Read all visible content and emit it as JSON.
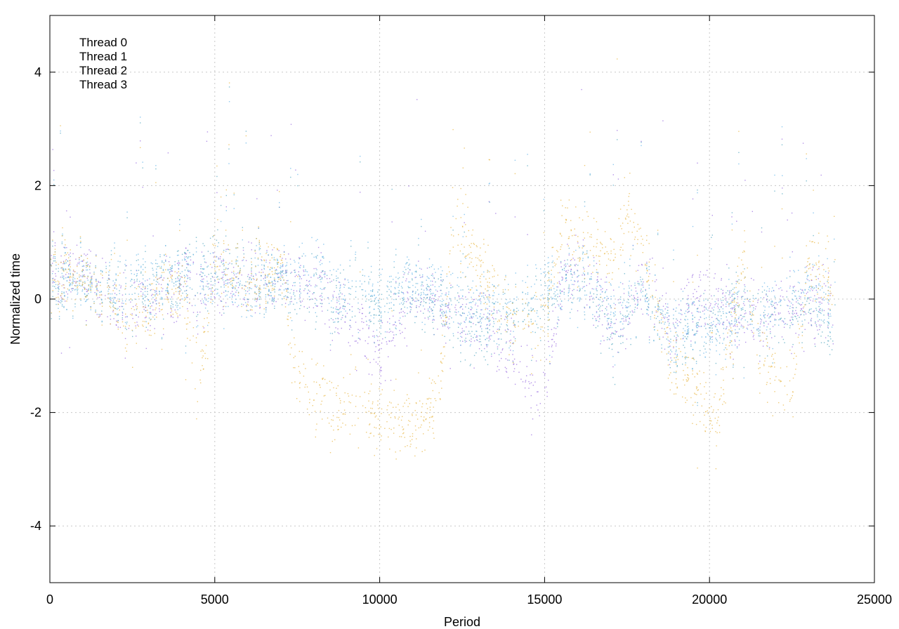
{
  "chart_data": {
    "type": "scatter",
    "title": "",
    "xlabel": "Period",
    "ylabel": "Normalized time",
    "xlim": [
      0,
      25000
    ],
    "ylim": [
      -5,
      5
    ],
    "xticks": [
      0,
      5000,
      10000,
      15000,
      20000,
      25000
    ],
    "yticks": [
      -4,
      -2,
      0,
      2,
      4
    ],
    "grid": true,
    "legend_position": "top-left",
    "x_extent": [
      0,
      23800
    ],
    "series": [
      {
        "name": "Thread 0",
        "color": "#9b6fe0",
        "centers": [
          [
            0,
            0.6
          ],
          [
            500,
            0.4
          ],
          [
            1000,
            0.5
          ],
          [
            1500,
            0.2
          ],
          [
            2000,
            0.0
          ],
          [
            2500,
            -0.1
          ],
          [
            3000,
            -0.2
          ],
          [
            3500,
            0.1
          ],
          [
            4000,
            0.3
          ],
          [
            4500,
            0.2
          ],
          [
            5000,
            0.3
          ],
          [
            6000,
            0.4
          ],
          [
            7000,
            0.3
          ],
          [
            8000,
            0.2
          ],
          [
            9000,
            -0.2
          ],
          [
            9500,
            -0.6
          ],
          [
            10000,
            -1.0
          ],
          [
            11000,
            0.2
          ],
          [
            12000,
            -0.2
          ],
          [
            13000,
            -0.3
          ],
          [
            13500,
            -0.6
          ],
          [
            14000,
            -1.0
          ],
          [
            14500,
            -1.4
          ],
          [
            15000,
            -1.6
          ],
          [
            15500,
            0.3
          ],
          [
            16000,
            0.6
          ],
          [
            17000,
            -0.4
          ],
          [
            18000,
            0.2
          ],
          [
            19000,
            -0.5
          ],
          [
            19500,
            -0.1
          ],
          [
            20000,
            0.0
          ],
          [
            21000,
            -0.3
          ],
          [
            22000,
            -0.2
          ],
          [
            23000,
            -0.1
          ],
          [
            23800,
            -0.3
          ]
        ]
      },
      {
        "name": "Thread 1",
        "color": "#5aa9c2",
        "centers": [
          [
            0,
            0.3
          ],
          [
            1000,
            0.4
          ],
          [
            2000,
            0.1
          ],
          [
            3000,
            0.2
          ],
          [
            4000,
            0.5
          ],
          [
            5000,
            0.6
          ],
          [
            6000,
            0.4
          ],
          [
            7000,
            0.3
          ],
          [
            8000,
            0.1
          ],
          [
            9000,
            0.1
          ],
          [
            10000,
            -0.1
          ],
          [
            11000,
            0.2
          ],
          [
            12000,
            -0.2
          ],
          [
            13000,
            -0.6
          ],
          [
            14000,
            -0.3
          ],
          [
            15000,
            0.0
          ],
          [
            16000,
            0.5
          ],
          [
            17000,
            -0.6
          ],
          [
            18000,
            0.2
          ],
          [
            19000,
            -0.8
          ],
          [
            20000,
            -0.4
          ],
          [
            21000,
            0.0
          ],
          [
            22000,
            -0.3
          ],
          [
            23000,
            -0.2
          ],
          [
            23800,
            -0.6
          ]
        ]
      },
      {
        "name": "Thread 2",
        "color": "#6ab7e8",
        "centers": [
          [
            0,
            0.4
          ],
          [
            1000,
            0.3
          ],
          [
            2000,
            0.2
          ],
          [
            3000,
            0.3
          ],
          [
            4000,
            0.4
          ],
          [
            5000,
            0.3
          ],
          [
            6000,
            0.2
          ],
          [
            7000,
            0.4
          ],
          [
            8000,
            0.4
          ],
          [
            9000,
            0.2
          ],
          [
            10000,
            0.0
          ],
          [
            11000,
            0.3
          ],
          [
            12000,
            0.0
          ],
          [
            13000,
            -0.2
          ],
          [
            14000,
            -0.1
          ],
          [
            15000,
            0.2
          ],
          [
            16000,
            0.3
          ],
          [
            17000,
            -0.2
          ],
          [
            18000,
            0.1
          ],
          [
            19000,
            -0.6
          ],
          [
            20000,
            -0.6
          ],
          [
            21000,
            -0.2
          ],
          [
            22000,
            0.0
          ],
          [
            23000,
            0.2
          ],
          [
            23800,
            -0.2
          ]
        ]
      },
      {
        "name": "Thread 3",
        "color": "#e8b84a",
        "centers": [
          [
            0,
            0.4
          ],
          [
            500,
            0.5
          ],
          [
            1000,
            0.4
          ],
          [
            1500,
            0.2
          ],
          [
            2000,
            0.0
          ],
          [
            2500,
            -0.4
          ],
          [
            3000,
            -0.1
          ],
          [
            3500,
            0.2
          ],
          [
            4000,
            0.3
          ],
          [
            4500,
            -1.5
          ],
          [
            5000,
            0.8
          ],
          [
            6000,
            0.3
          ],
          [
            7000,
            0.6
          ],
          [
            7500,
            -1.4
          ],
          [
            8000,
            -1.8
          ],
          [
            9000,
            -1.8
          ],
          [
            10000,
            -2.1
          ],
          [
            11000,
            -2.2
          ],
          [
            11800,
            -1.8
          ],
          [
            12200,
            1.5
          ],
          [
            13000,
            0.5
          ],
          [
            14000,
            -0.3
          ],
          [
            15000,
            -0.4
          ],
          [
            15500,
            1.4
          ],
          [
            16000,
            1.0
          ],
          [
            17000,
            0.6
          ],
          [
            17500,
            1.6
          ],
          [
            18000,
            0.8
          ],
          [
            18800,
            -1.0
          ],
          [
            19500,
            -1.6
          ],
          [
            20200,
            -2.2
          ],
          [
            21000,
            0.8
          ],
          [
            21500,
            -0.8
          ],
          [
            22000,
            -1.3
          ],
          [
            22500,
            -1.6
          ],
          [
            23000,
            0.6
          ],
          [
            23800,
            0.2
          ]
        ]
      }
    ]
  }
}
